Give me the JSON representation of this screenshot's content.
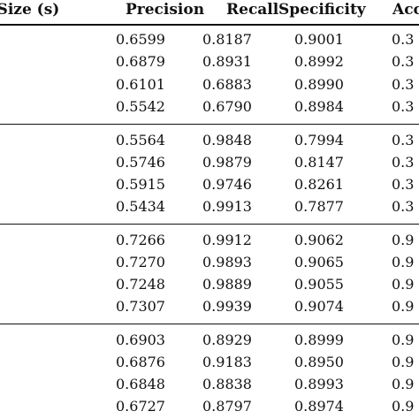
{
  "table": {
    "headers": {
      "window": "w Size (s)",
      "precision": "Precision",
      "recall": "Recall",
      "specificity": "Specificity",
      "accuracy": "Acc"
    },
    "groups": [
      {
        "rows": [
          {
            "precision": "0.6599",
            "recall": "0.8187",
            "specificity": "0.9001",
            "accuracy": "0.3"
          },
          {
            "precision": "0.6879",
            "recall": "0.8931",
            "specificity": "0.8992",
            "accuracy": "0.3"
          },
          {
            "precision": "0.6101",
            "recall": "0.6883",
            "specificity": "0.8990",
            "accuracy": "0.3"
          },
          {
            "precision": "0.5542",
            "recall": "0.6790",
            "specificity": "0.8984",
            "accuracy": "0.3"
          }
        ]
      },
      {
        "rows": [
          {
            "precision": "0.5564",
            "recall": "0.9848",
            "specificity": "0.7994",
            "accuracy": "0.3"
          },
          {
            "precision": "0.5746",
            "recall": "0.9879",
            "specificity": "0.8147",
            "accuracy": "0.3"
          },
          {
            "precision": "0.5915",
            "recall": "0.9746",
            "specificity": "0.8261",
            "accuracy": "0.3"
          },
          {
            "precision": "0.5434",
            "recall": "0.9913",
            "specificity": "0.7877",
            "accuracy": "0.3"
          }
        ]
      },
      {
        "rows": [
          {
            "precision": "0.7266",
            "recall": "0.9912",
            "specificity": "0.9062",
            "accuracy": "0.9"
          },
          {
            "precision": "0.7270",
            "recall": "0.9893",
            "specificity": "0.9065",
            "accuracy": "0.9"
          },
          {
            "precision": "0.7248",
            "recall": "0.9889",
            "specificity": "0.9055",
            "accuracy": "0.9"
          },
          {
            "precision": "0.7307",
            "recall": "0.9939",
            "specificity": "0.9074",
            "accuracy": "0.9"
          }
        ]
      },
      {
        "rows": [
          {
            "precision": "0.6903",
            "recall": "0.8929",
            "specificity": "0.8999",
            "accuracy": "0.9"
          },
          {
            "precision": "0.6876",
            "recall": "0.9183",
            "specificity": "0.8950",
            "accuracy": "0.9"
          },
          {
            "precision": "0.6848",
            "recall": "0.8838",
            "specificity": "0.8993",
            "accuracy": "0.9"
          },
          {
            "precision": "0.6727",
            "recall": "0.8797",
            "specificity": "0.8974",
            "accuracy": "0.9"
          }
        ]
      }
    ]
  }
}
